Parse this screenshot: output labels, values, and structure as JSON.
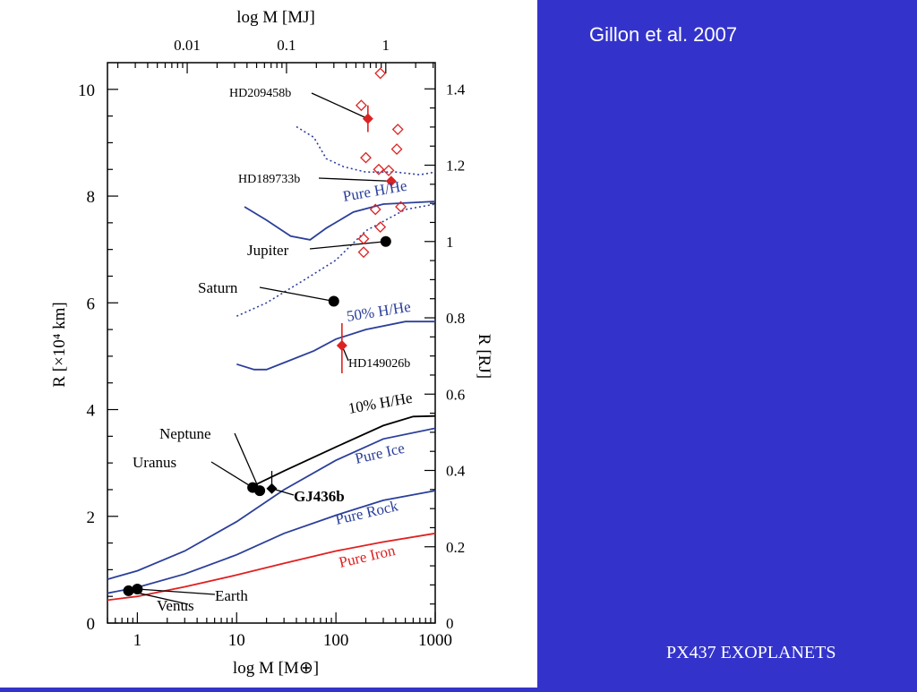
{
  "slide": {
    "citation": "Gillon et al. 2007",
    "footer": "PX437 EXOPLANETS"
  },
  "colors": {
    "background": "#3333cc",
    "panel": "#ffffff",
    "curve_blue": "#2b3f9a",
    "curve_red": "#e02020",
    "marker_red": "#dd2222",
    "black": "#000000"
  },
  "chart_data": {
    "type": "scatter",
    "xlabel_bottom": "log M [M⊕]",
    "xlabel_top": "log M [MJ]",
    "ylabel_left": "R [×10⁴ km]",
    "ylabel_right": "R [RJ]",
    "xscale": "log",
    "xlim": [
      0.5,
      1000
    ],
    "ylim": [
      0,
      10.5
    ],
    "xticks_bottom": [
      "1",
      "10",
      "100",
      "1000"
    ],
    "xticks_top": [
      "0.01",
      "0.1",
      "1"
    ],
    "yticks_left": [
      "0",
      "2",
      "4",
      "6",
      "8",
      "10"
    ],
    "yticks_right": [
      "0",
      "0.2",
      "0.4",
      "0.6",
      "0.8",
      "1",
      "1.2",
      "1.4"
    ],
    "curves": [
      {
        "name": "Pure Iron",
        "color": "red",
        "style": "solid",
        "points": [
          [
            0.5,
            0.43
          ],
          [
            1,
            0.5
          ],
          [
            3,
            0.68
          ],
          [
            10,
            0.9
          ],
          [
            30,
            1.12
          ],
          [
            100,
            1.35
          ],
          [
            300,
            1.52
          ],
          [
            1000,
            1.68
          ]
        ]
      },
      {
        "name": "Pure Rock",
        "color": "blue",
        "style": "solid",
        "points": [
          [
            0.5,
            0.56
          ],
          [
            1,
            0.67
          ],
          [
            3,
            0.92
          ],
          [
            10,
            1.28
          ],
          [
            30,
            1.68
          ],
          [
            100,
            2.02
          ],
          [
            300,
            2.3
          ],
          [
            1000,
            2.48
          ]
        ]
      },
      {
        "name": "Pure Ice",
        "color": "blue",
        "style": "solid",
        "points": [
          [
            0.5,
            0.82
          ],
          [
            1,
            0.98
          ],
          [
            3,
            1.35
          ],
          [
            10,
            1.9
          ],
          [
            30,
            2.5
          ],
          [
            100,
            3.05
          ],
          [
            300,
            3.45
          ],
          [
            1000,
            3.65
          ]
        ]
      },
      {
        "name": "10% H/He",
        "color": "black",
        "style": "solid",
        "points": [
          [
            15,
            2.58
          ],
          [
            30,
            2.85
          ],
          [
            100,
            3.3
          ],
          [
            300,
            3.7
          ],
          [
            600,
            3.87
          ],
          [
            1000,
            3.88
          ]
        ]
      },
      {
        "name": "50% H/He",
        "color": "blue",
        "style": "solid",
        "points": [
          [
            10,
            4.85
          ],
          [
            15,
            4.75
          ],
          [
            20,
            4.75
          ],
          [
            30,
            4.88
          ],
          [
            60,
            5.1
          ],
          [
            100,
            5.32
          ],
          [
            200,
            5.5
          ],
          [
            500,
            5.65
          ],
          [
            1000,
            5.65
          ]
        ]
      },
      {
        "name": "Pure H/He",
        "color": "blue",
        "style": "solid",
        "points": [
          [
            12,
            7.8
          ],
          [
            20,
            7.55
          ],
          [
            35,
            7.25
          ],
          [
            55,
            7.18
          ],
          [
            80,
            7.4
          ],
          [
            150,
            7.7
          ],
          [
            300,
            7.85
          ],
          [
            1000,
            7.9
          ]
        ]
      },
      {
        "name": "",
        "color": "blue",
        "style": "dotted",
        "points": [
          [
            10,
            5.75
          ],
          [
            20,
            6.0
          ],
          [
            50,
            6.45
          ],
          [
            100,
            6.8
          ],
          [
            200,
            7.35
          ],
          [
            500,
            7.75
          ],
          [
            1000,
            7.85
          ]
        ]
      },
      {
        "name": "",
        "color": "blue",
        "style": "dotted",
        "points": [
          [
            40,
            9.3
          ],
          [
            60,
            9.1
          ],
          [
            80,
            8.7
          ],
          [
            120,
            8.55
          ],
          [
            200,
            8.45
          ],
          [
            400,
            8.45
          ],
          [
            700,
            8.4
          ],
          [
            1000,
            8.45
          ]
        ]
      }
    ],
    "planets": [
      {
        "name": "Venus",
        "mass": 0.815,
        "radius": 0.605,
        "marker": "circle",
        "color": "black"
      },
      {
        "name": "Earth",
        "mass": 1.0,
        "radius": 0.637,
        "marker": "circle",
        "color": "black"
      },
      {
        "name": "Uranus",
        "mass": 14.5,
        "radius": 2.54,
        "marker": "circle",
        "color": "black"
      },
      {
        "name": "Neptune",
        "mass": 17.1,
        "radius": 2.48,
        "marker": "circle",
        "color": "black"
      },
      {
        "name": "GJ436b",
        "mass": 22.6,
        "radius": 2.52,
        "marker": "diamond",
        "color": "black"
      },
      {
        "name": "Saturn",
        "mass": 95.2,
        "radius": 6.03,
        "marker": "circle",
        "color": "black"
      },
      {
        "name": "Jupiter",
        "mass": 317.8,
        "radius": 7.15,
        "marker": "circle",
        "color": "black"
      },
      {
        "name": "HD149026b",
        "mass": 115,
        "radius": 5.2,
        "marker": "diamond",
        "color": "red",
        "yerr": [
          4.68,
          5.62
        ]
      },
      {
        "name": "HD209458b",
        "mass": 210,
        "radius": 9.45,
        "marker": "diamond",
        "color": "red",
        "yerr": [
          9.2,
          9.7
        ]
      },
      {
        "name": "HD189733b",
        "mass": 360,
        "radius": 8.28,
        "marker": "diamond",
        "color": "red"
      }
    ],
    "other_exoplanets": [
      {
        "mass": 280,
        "radius": 10.3
      },
      {
        "mass": 180,
        "radius": 9.7
      },
      {
        "mass": 420,
        "radius": 9.25
      },
      {
        "mass": 410,
        "radius": 8.88
      },
      {
        "mass": 200,
        "radius": 8.72
      },
      {
        "mass": 270,
        "radius": 8.5
      },
      {
        "mass": 340,
        "radius": 8.48
      },
      {
        "mass": 250,
        "radius": 7.75
      },
      {
        "mass": 450,
        "radius": 7.8
      },
      {
        "mass": 280,
        "radius": 7.42
      },
      {
        "mass": 190,
        "radius": 7.2
      },
      {
        "mass": 190,
        "radius": 6.95
      }
    ]
  }
}
